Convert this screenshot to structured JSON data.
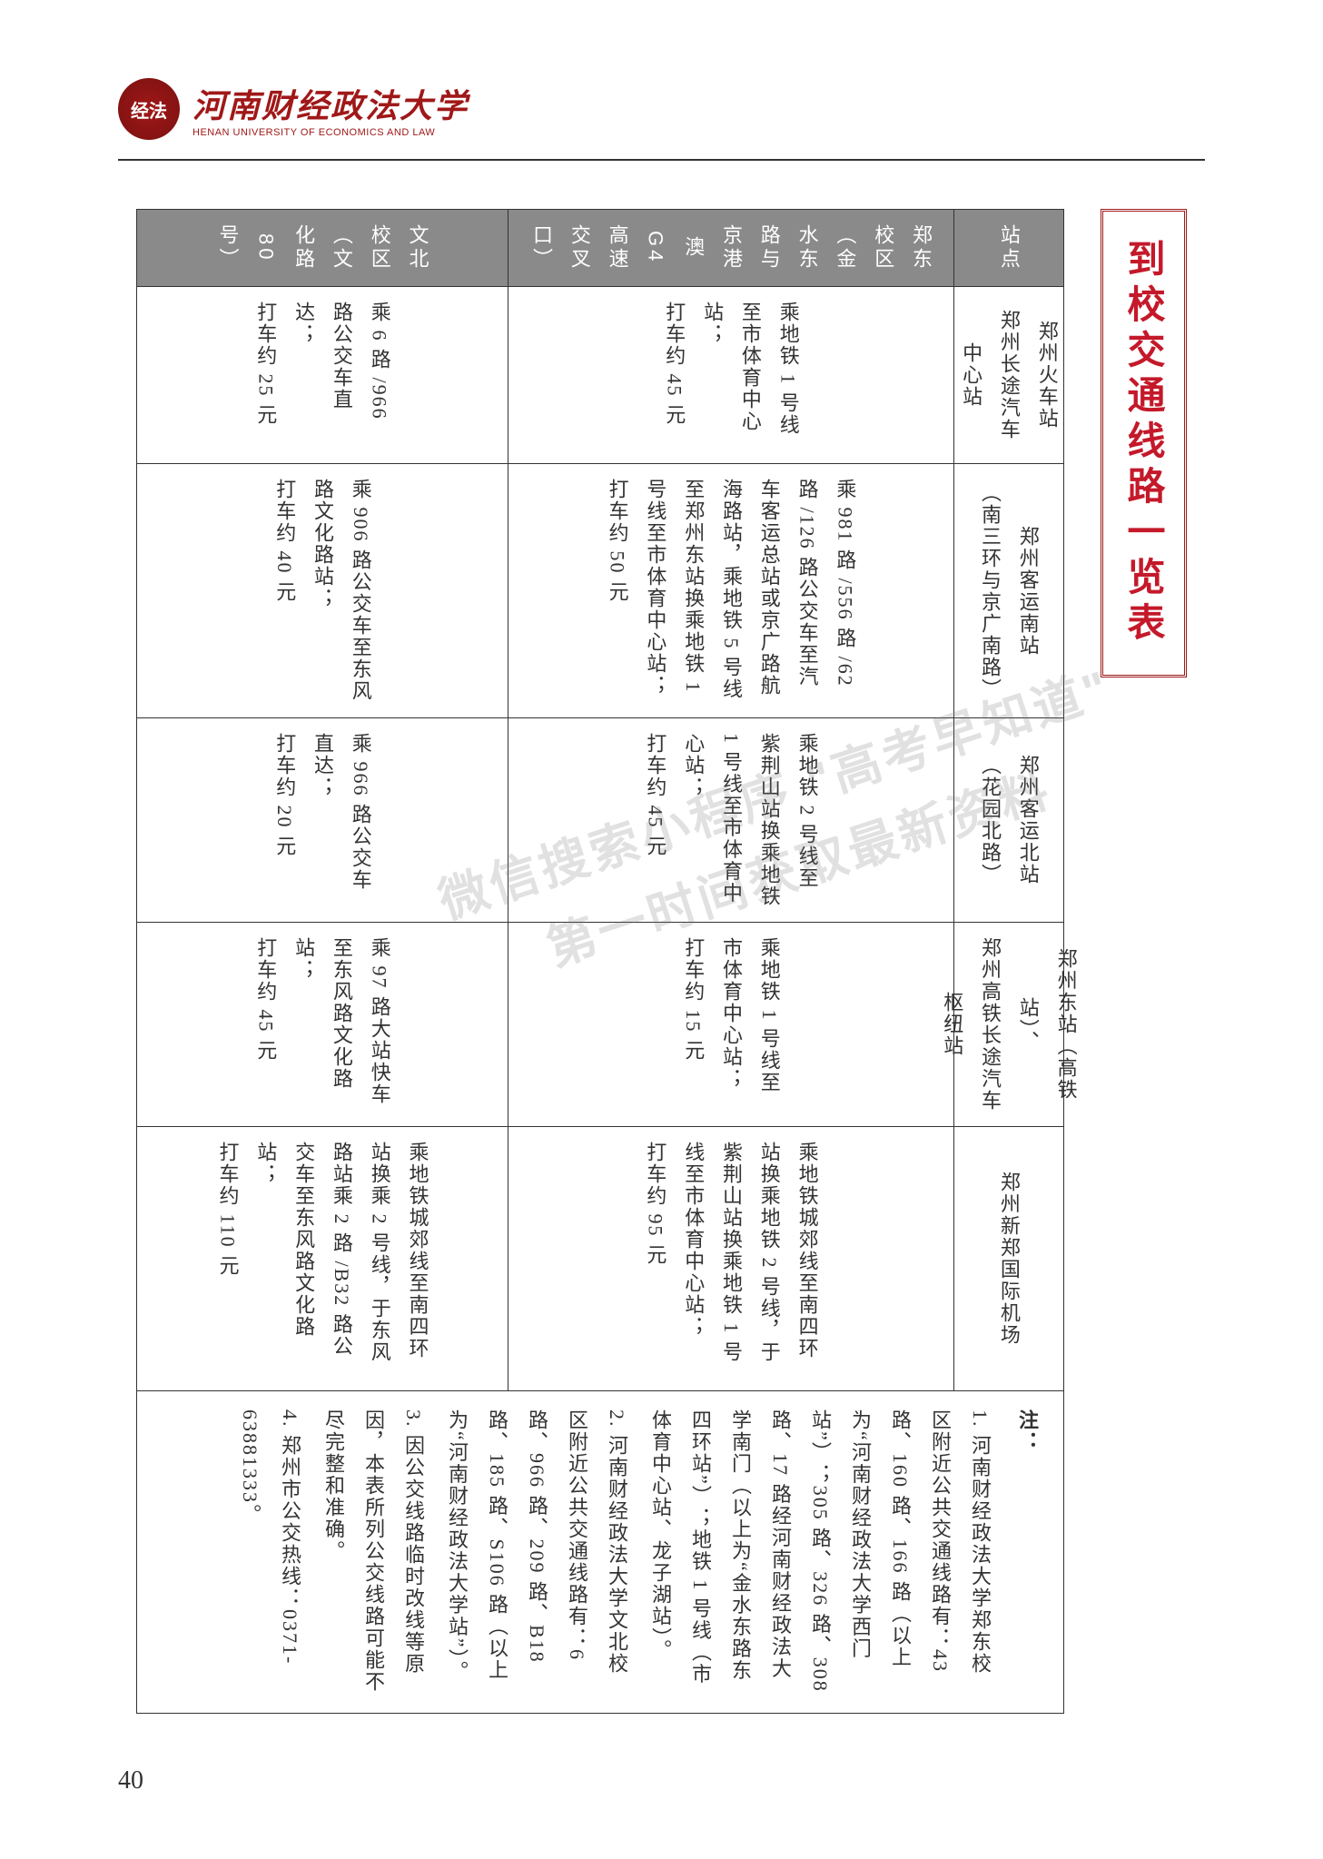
{
  "university": {
    "name_cn": "河南财经政法大学",
    "name_en": "HENAN UNIVERSITY OF ECONOMICS AND LAW",
    "logo_char": "经法"
  },
  "title": "到校交通线路一览表",
  "headers": {
    "station": "站点",
    "east": "郑东校区（金水东路与京港澳 G4 高速交叉口）",
    "north": "文北校区（文化路 80 号）"
  },
  "rows": [
    {
      "station": "郑州火车站\n郑州长途汽车中心站",
      "east": "乘地铁 1 号线至市体育中心站；\n打车约 45 元",
      "north": "乘 6 路 /966 路公交车直达；\n打车约 25 元"
    },
    {
      "station": "郑州客运南站\n（南三环与京广南路）",
      "east": "乘 981 路 /556 路 /62 路 /126 路公交车至汽车客运总站或京广路航海路站，乘地铁 5 号线至郑州东站换乘地铁 1 号线至市体育中心站；\n打车约 50 元",
      "north": "乘 906 路公交车至东风路文化路站；\n打车约 40 元"
    },
    {
      "station": "郑州客运北站\n（花园北路）",
      "east": "乘地铁 2 号线至紫荆山站换乘地铁 1 号线至市体育中心站；\n打车约 45 元",
      "north": "乘 966 路公交车直达；\n打车约 20 元"
    },
    {
      "station": "郑州东站（高铁站）、\n郑州高铁长途汽车枢纽站",
      "east": "乘地铁 1 号线至市体育中心站；\n打车约 15 元",
      "north": "乘 97 路大站快车至东风路文化路站；\n打车约 45 元"
    },
    {
      "station": "郑州新郑国际机场",
      "east": "乘地铁城郊线至南四环站换乘地铁 2 号线，于紫荆山站换乘地铁 1 号线至市体育中心站；\n打车约 95 元",
      "north": "乘地铁城郊线至南四环站换乘 2 号线，于东风路站乘 2 路 /B32 路公交车至东风路文化路站；\n打车约 110 元"
    }
  ],
  "notes": {
    "title": "注：",
    "items": [
      "1. 河南财经政法大学郑东校区附近公共交通线路有：43 路、160 路、166 路（以上为“河南财经政法大学西门站”）；305 路、326 路、308 路、17 路经河南财经政法大学南门（以上为“金水东路东四环站”）；地铁 1 号线（市体育中心站、龙子湖站）。",
      "2. 河南财经政法大学文北校区附近公共交通线路有：6 路、966 路、209 路、B18 路、185 路、S106 路（以上为“河南财经政法大学站”）。",
      "3. 因公交线路临时改线等原因，本表所列公交线路可能不尽完整和准确。",
      "4. 郑州市公交热线：0371-63881333。"
    ]
  },
  "watermark": {
    "line1": "微信搜索小程序 \"高考早知道\"",
    "line2": "第一时间获取最新资料"
  },
  "page_number": "40",
  "colors": {
    "brand": "#a01818",
    "title_text": "#c4192a",
    "header_bg": "#8a8a8a",
    "text": "#333333"
  }
}
